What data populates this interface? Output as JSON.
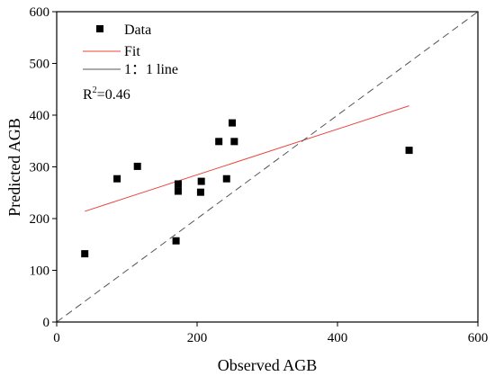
{
  "chart_data": {
    "type": "scatter",
    "xlabel": "Observed AGB",
    "ylabel": "Predicted AGB",
    "xlim": [
      0,
      600
    ],
    "ylim": [
      0,
      600
    ],
    "x_ticks": [
      0,
      200,
      400,
      600
    ],
    "y_ticks": [
      0,
      100,
      200,
      300,
      400,
      500,
      600
    ],
    "x_tick_labels": [
      "0",
      "200",
      "400",
      "600"
    ],
    "y_tick_labels": [
      "0",
      "100",
      "200",
      "300",
      "400",
      "500",
      "600"
    ],
    "grid": false,
    "legend_position": "top-left",
    "series": [
      {
        "name": "Data",
        "kind": "scatter",
        "marker": "square",
        "color": "#000000",
        "points": [
          [
            40,
            132
          ],
          [
            86,
            277
          ],
          [
            115,
            301
          ],
          [
            170,
            157
          ],
          [
            173,
            267
          ],
          [
            173,
            253
          ],
          [
            206,
            272
          ],
          [
            205,
            251
          ],
          [
            231,
            349
          ],
          [
            242,
            277
          ],
          [
            250,
            385
          ],
          [
            253,
            349
          ],
          [
            502,
            332
          ]
        ]
      },
      {
        "name": "Fit",
        "kind": "line",
        "color": "#e8463c",
        "points": [
          [
            40,
            214
          ],
          [
            502,
            418
          ]
        ]
      },
      {
        "name": "1：1 line",
        "kind": "line",
        "dash": "dashed",
        "color": "#555555",
        "points": [
          [
            0,
            0
          ],
          [
            600,
            600
          ]
        ]
      }
    ],
    "annotation": {
      "base": "R",
      "superscript": "2",
      "suffix": "=0.46"
    }
  }
}
